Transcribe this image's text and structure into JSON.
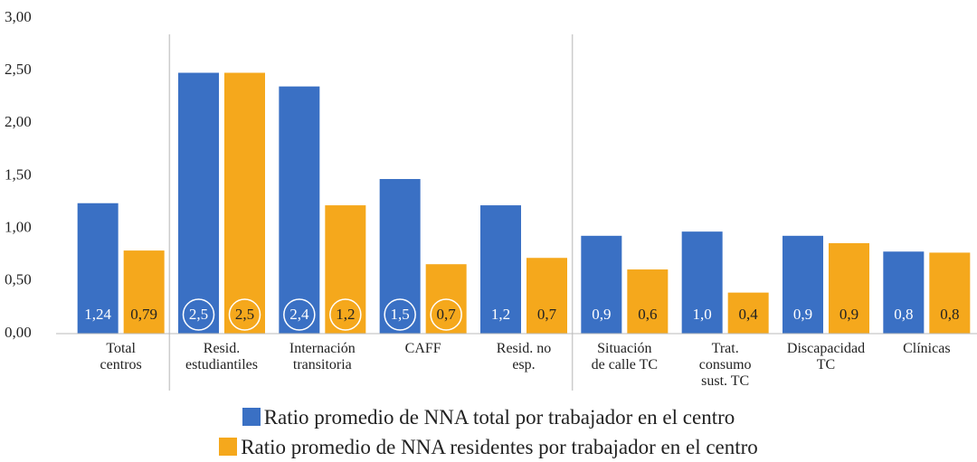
{
  "chart_data": {
    "type": "bar",
    "categories": [
      "Total\ncentros",
      "Resid.\nestudiantiles",
      "Internación\ntransitoria",
      "CAFF",
      "Resid. no\nesp.",
      "Situación\nde calle TC",
      "Trat.\nconsumo\nsust. TC",
      "Discapacidad\nTC",
      "Clínicas"
    ],
    "series": [
      {
        "name": "Ratio promedio de NNA total por trabajador en el centro",
        "color": "#3a70c4",
        "values": [
          1.24,
          2.48,
          2.35,
          1.47,
          1.22,
          0.93,
          0.97,
          0.93,
          0.78
        ],
        "value_labels": [
          "1,24",
          "2,5",
          "2,4",
          "1,5",
          "1,2",
          "0,9",
          "1,0",
          "0,9",
          "0,8"
        ]
      },
      {
        "name": "Ratio promedio de NNA residentes por trabajador en el centro",
        "color": "#f5a81c",
        "values": [
          0.79,
          2.48,
          1.22,
          0.66,
          0.72,
          0.61,
          0.39,
          0.86,
          0.77
        ],
        "value_labels": [
          "0,79",
          "2,5",
          "1,2",
          "0,7",
          "0,7",
          "0,6",
          "0,4",
          "0,9",
          "0,8"
        ]
      }
    ],
    "ylim": [
      0,
      3
    ],
    "yticks": [
      {
        "value": 0,
        "label": "0,00"
      },
      {
        "value": 0.5,
        "label": "0,50"
      },
      {
        "value": 1,
        "label": "1,00"
      },
      {
        "value": 1.5,
        "label": "1,50"
      },
      {
        "value": 2,
        "label": "2,00"
      },
      {
        "value": 2.5,
        "label": "2,50"
      },
      {
        "value": 3,
        "label": "3,00"
      }
    ],
    "grid": false
  }
}
